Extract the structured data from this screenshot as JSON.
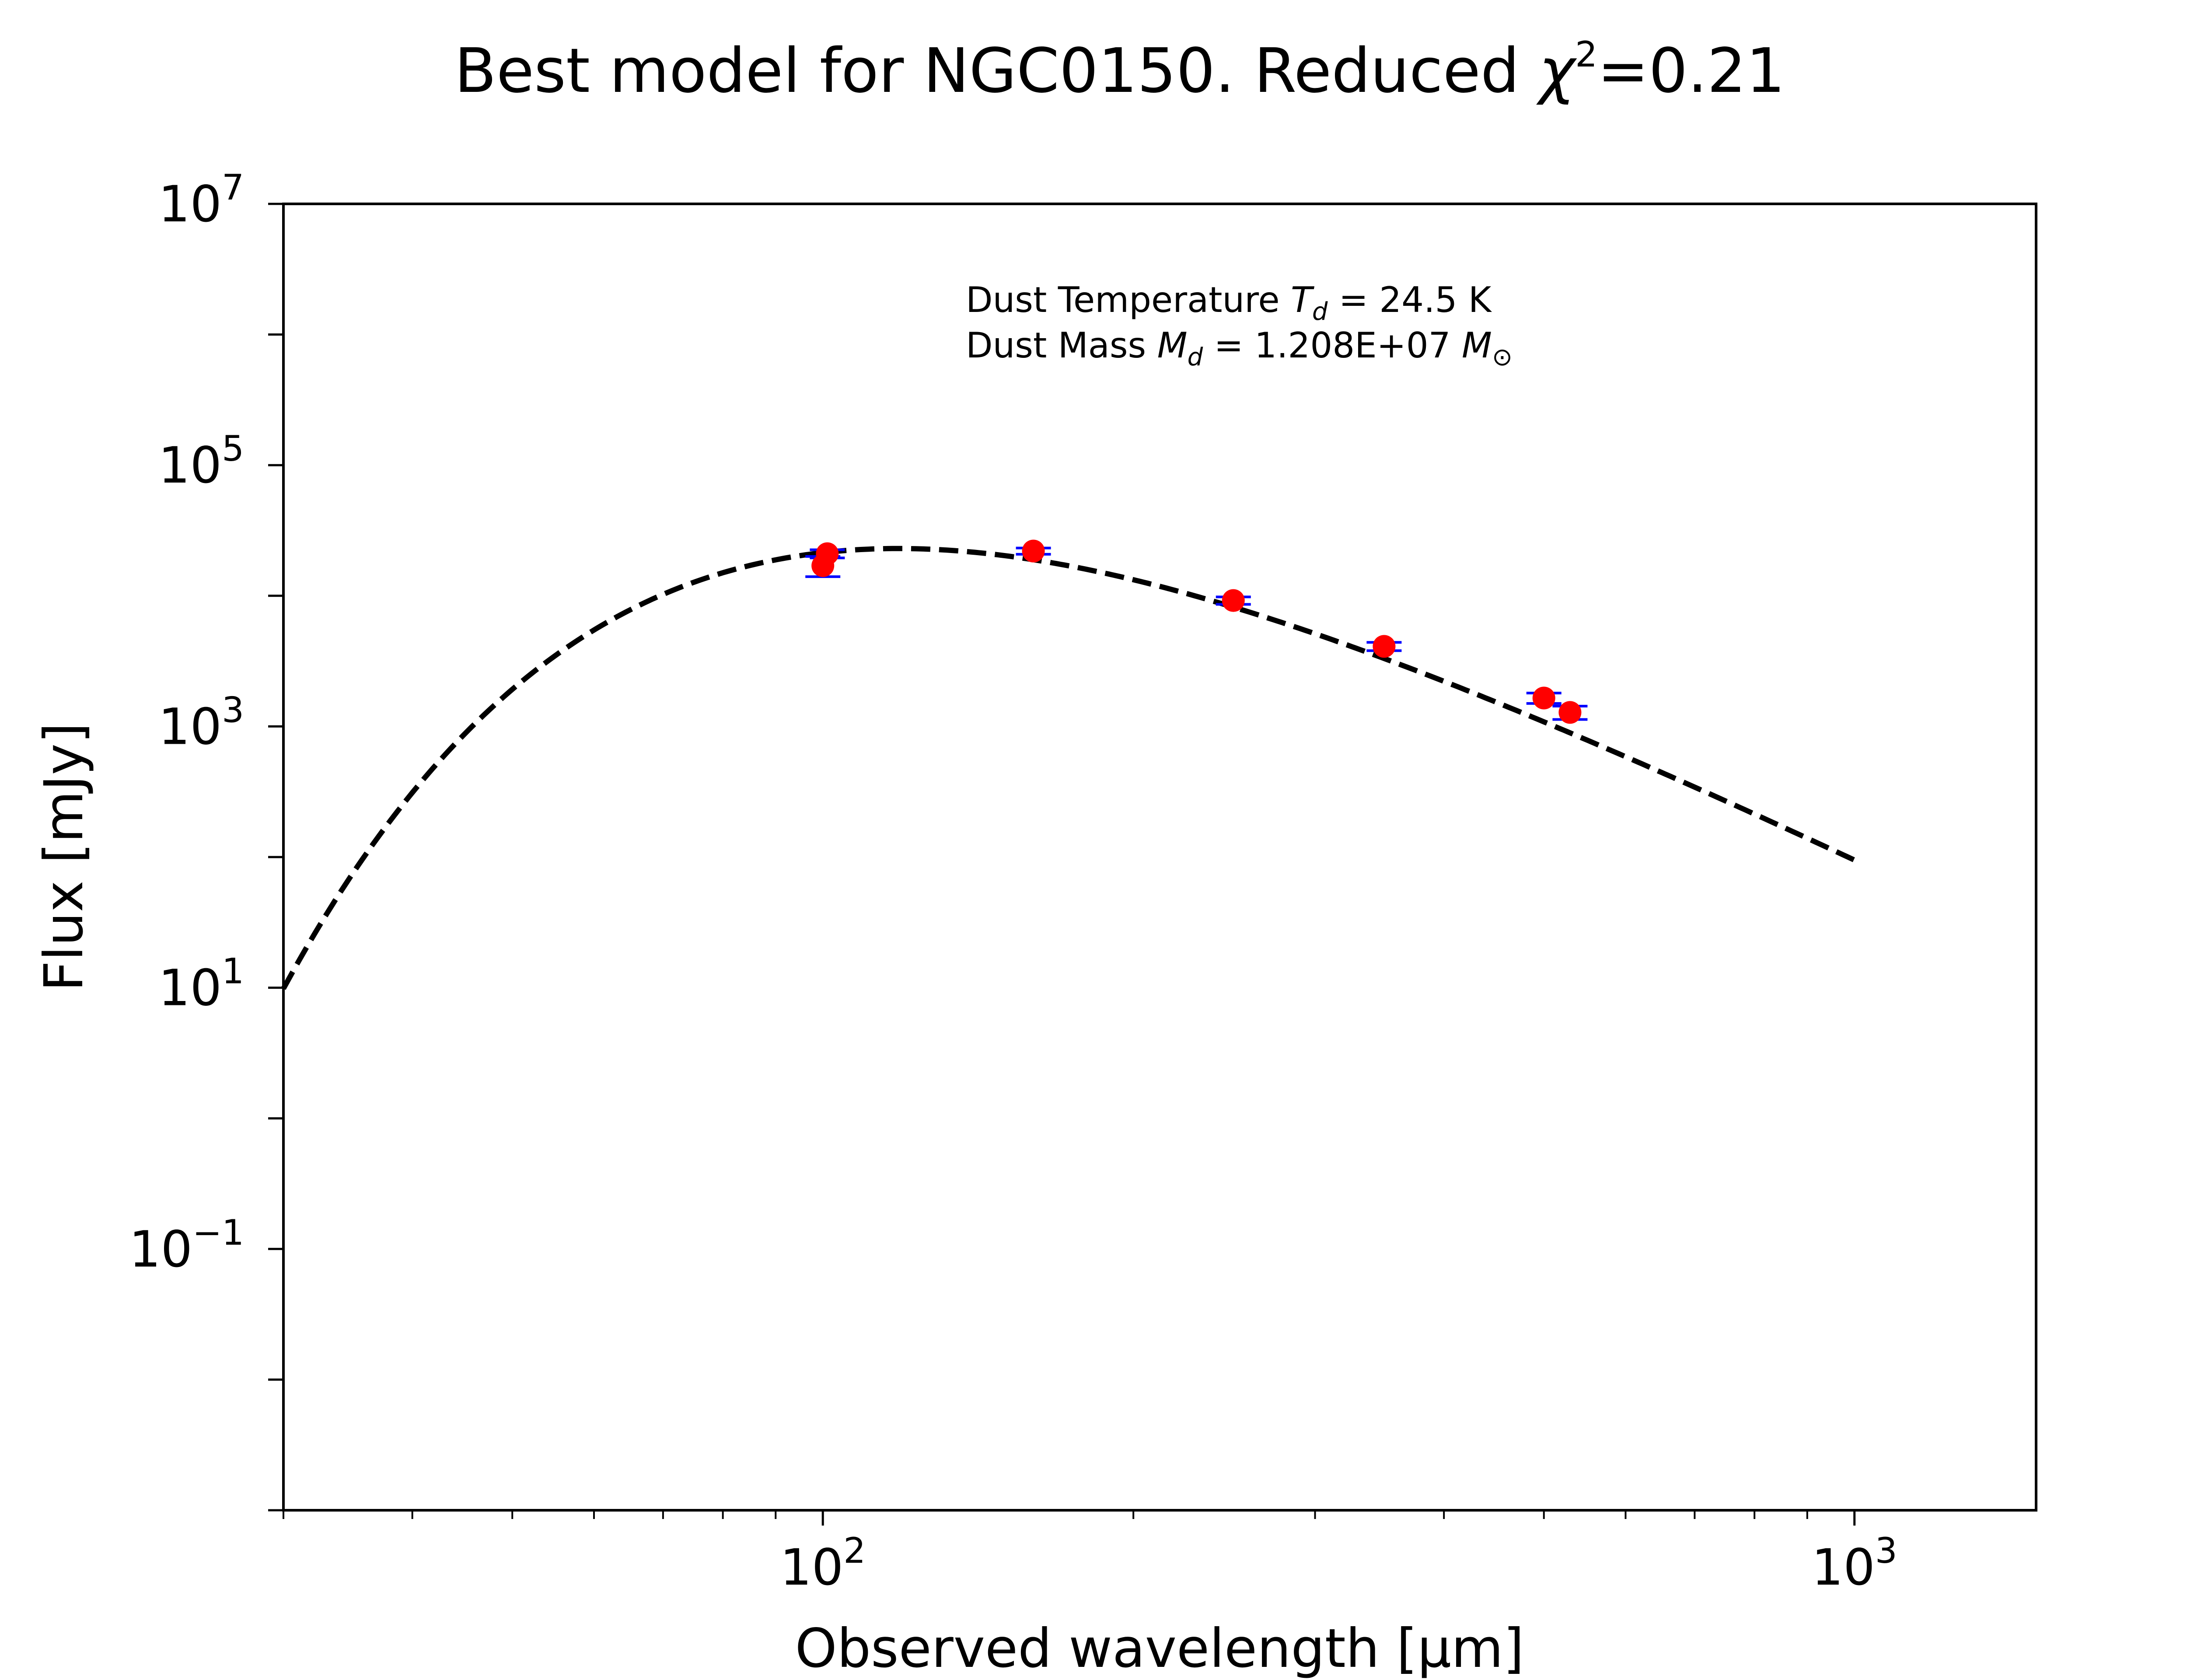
{
  "chart_data": {
    "type": "scatter",
    "title": "Best model for NGC0150. Reduced χ²=0.21",
    "title_parts": {
      "prefix": "Best model for NGC0150. Reduced ",
      "chi": "χ",
      "chi_exp": "2",
      "suffix": "=0.21"
    },
    "xlabel": "Observed wavelength [μm]",
    "ylabel": "Flux [mJy]",
    "xscale": "log",
    "yscale": "log",
    "xlim": [
      30,
      1500
    ],
    "ylim": [
      0.001,
      10000000
    ],
    "x_ticks": [
      {
        "value": 100,
        "base": "10",
        "exp": "2"
      },
      {
        "value": 1000,
        "base": "10",
        "exp": "3"
      }
    ],
    "y_ticks": [
      {
        "value": 10000000,
        "base": "10",
        "exp": "7"
      },
      {
        "value": 100000,
        "base": "10",
        "exp": "5"
      },
      {
        "value": 1000,
        "base": "10",
        "exp": "3"
      },
      {
        "value": 10,
        "base": "10",
        "exp": "1"
      },
      {
        "value": 0.1,
        "base": "10",
        "exp": "−1"
      }
    ],
    "grid": false,
    "annotations": {
      "temperature": {
        "prefix": "Dust Temperature ",
        "symbol": "T",
        "sub": "d",
        "suffix": " = 24.5 K"
      },
      "mass": {
        "prefix": "Dust Mass ",
        "symbol": "M",
        "sub": "d",
        "suffix": " = 1.208E+07 ",
        "unit": "M",
        "unit_sub": "⊙"
      }
    },
    "series": [
      {
        "type": "line",
        "style": "dashed",
        "color": "#000000",
        "model": "modified blackbody",
        "temperature_K": 24.5,
        "beta": 2,
        "x_range": [
          30,
          1000
        ],
        "peak_flux_mJy": 23000
      },
      {
        "type": "scatter-errorbar",
        "marker_color": "#ff0000",
        "errorbar_color": "#0000ff",
        "points": [
          {
            "x": 100,
            "y": 17000,
            "yerr_low": 3000,
            "yerr_high": 3000
          },
          {
            "x": 101,
            "y": 21000,
            "yerr_low": 1500,
            "yerr_high": 1500
          },
          {
            "x": 160,
            "y": 22000,
            "yerr_low": 1200,
            "yerr_high": 1200
          },
          {
            "x": 250,
            "y": 9200,
            "yerr_low": 600,
            "yerr_high": 600
          },
          {
            "x": 350,
            "y": 4100,
            "yerr_low": 300,
            "yerr_high": 300
          },
          {
            "x": 500,
            "y": 1650,
            "yerr_low": 150,
            "yerr_high": 150
          },
          {
            "x": 530,
            "y": 1280,
            "yerr_low": 150,
            "yerr_high": 150
          }
        ]
      }
    ]
  }
}
